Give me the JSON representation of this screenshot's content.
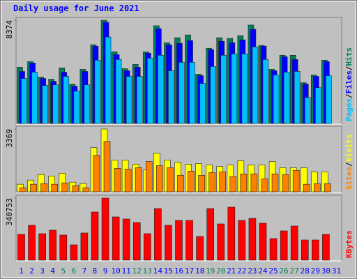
{
  "chart_data": [
    {
      "type": "bar",
      "title": "Daily usage for June 2021",
      "legend_separator": "/",
      "ylim": [
        0,
        8374
      ],
      "yticks": [
        8374
      ],
      "series": [
        {
          "name": "Hits",
          "color": "#00805c",
          "values": [
            4560,
            5016,
            3762,
            3591,
            4503,
            3192,
            4389,
            6384,
            8374,
            5814,
            4446,
            4788,
            5814,
            7923,
            6555,
            6954,
            7182,
            3990,
            6099,
            6954,
            6897,
            7125,
            7980,
            6327,
            4389,
            5529,
            5529,
            3306,
            3933,
            5130,
            null
          ]
        },
        {
          "name": "Files",
          "color": "#0000ff",
          "values": [
            4218,
            4902,
            3648,
            3420,
            4161,
            3021,
            4218,
            6270,
            8208,
            5586,
            4275,
            4560,
            5700,
            7695,
            6384,
            6498,
            6726,
            3876,
            5985,
            6669,
            6555,
            6783,
            7638,
            6270,
            4275,
            5415,
            5187,
            3192,
            3819,
            5016,
            null
          ]
        },
        {
          "name": "Pages",
          "color": "#00c0ff",
          "values": [
            3648,
            4161,
            3078,
            3135,
            3819,
            2622,
            3135,
            5130,
            7011,
            5187,
            3819,
            3819,
            5301,
            5529,
            4275,
            4959,
            4959,
            3249,
            4617,
            5529,
            5643,
            5643,
            6213,
            5187,
            3933,
            4161,
            4218,
            2109,
            2907,
            3876,
            null
          ]
        }
      ]
    },
    {
      "type": "bar",
      "legend_separator": "/",
      "ylim": [
        0,
        3369
      ],
      "yticks": [
        3369
      ],
      "series": [
        {
          "name": "Visits",
          "color": "#ffff00",
          "values": [
            407,
            629,
            925,
            851,
            999,
            518,
            444,
            2368,
            3369,
            1702,
            1702,
            1480,
            1184,
            2072,
            1702,
            1591,
            1480,
            1517,
            1443,
            1369,
            1443,
            1665,
            1443,
            1443,
            1628,
            1295,
            1295,
            1295,
            1073,
            1073,
            null
          ]
        },
        {
          "name": "Sites",
          "color": "#ff8000",
          "values": [
            222,
            407,
            444,
            407,
            481,
            333,
            222,
            1961,
            2701,
            1258,
            1221,
            1295,
            1628,
            1406,
            1295,
            888,
            1110,
            888,
            1036,
            1073,
            814,
            962,
            962,
            703,
            962,
            925,
            1147,
            407,
            444,
            444,
            null
          ]
        }
      ]
    },
    {
      "type": "bar",
      "ylim": [
        0,
        340753
      ],
      "yticks": [
        340753
      ],
      "categories": [
        "1",
        "2",
        "3",
        "4",
        "5",
        "6",
        "7",
        "8",
        "9",
        "10",
        "11",
        "12",
        "13",
        "14",
        "15",
        "16",
        "17",
        "18",
        "19",
        "20",
        "21",
        "22",
        "23",
        "24",
        "25",
        "26",
        "27",
        "28",
        "29",
        "30",
        "31"
      ],
      "category_colors": [
        "#0000ff",
        "#0000ff",
        "#0000ff",
        "#0000ff",
        "#00805c",
        "#00805c",
        "#0000ff",
        "#0000ff",
        "#0000ff",
        "#0000ff",
        "#0000ff",
        "#00805c",
        "#00805c",
        "#0000ff",
        "#0000ff",
        "#0000ff",
        "#0000ff",
        "#0000ff",
        "#00805c",
        "#00805c",
        "#0000ff",
        "#0000ff",
        "#0000ff",
        "#0000ff",
        "#0000ff",
        "#00805c",
        "#00805c",
        "#0000ff",
        "#0000ff",
        "#0000ff",
        "#0000ff"
      ],
      "series": [
        {
          "name": "KBytes",
          "color": "#ff0000",
          "values": [
            141673,
            191450,
            145502,
            164647,
            137844,
            84238,
            149331,
            264201,
            340753,
            237398,
            225911,
            206766,
            145502,
            283346,
            191450,
            218253,
            218253,
            130186,
            283346,
            199108,
            291004,
            218253,
            229740,
            202937,
            118699,
            160818,
            187621,
            111041,
            111041,
            141673,
            null
          ]
        }
      ]
    }
  ]
}
